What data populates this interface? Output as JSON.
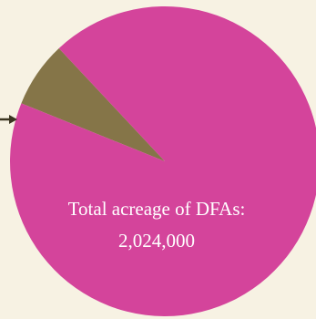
{
  "chart_data": {
    "type": "pie",
    "slices": [
      {
        "label": "",
        "value": 93.1,
        "color": "#d4449b"
      },
      {
        "label": "",
        "value": 6.9,
        "color": "#857548"
      }
    ],
    "annotation": {
      "line1": "Total acreage of DFAs:",
      "line2": "2,024,000"
    },
    "pointer_color": "#3a3420"
  }
}
